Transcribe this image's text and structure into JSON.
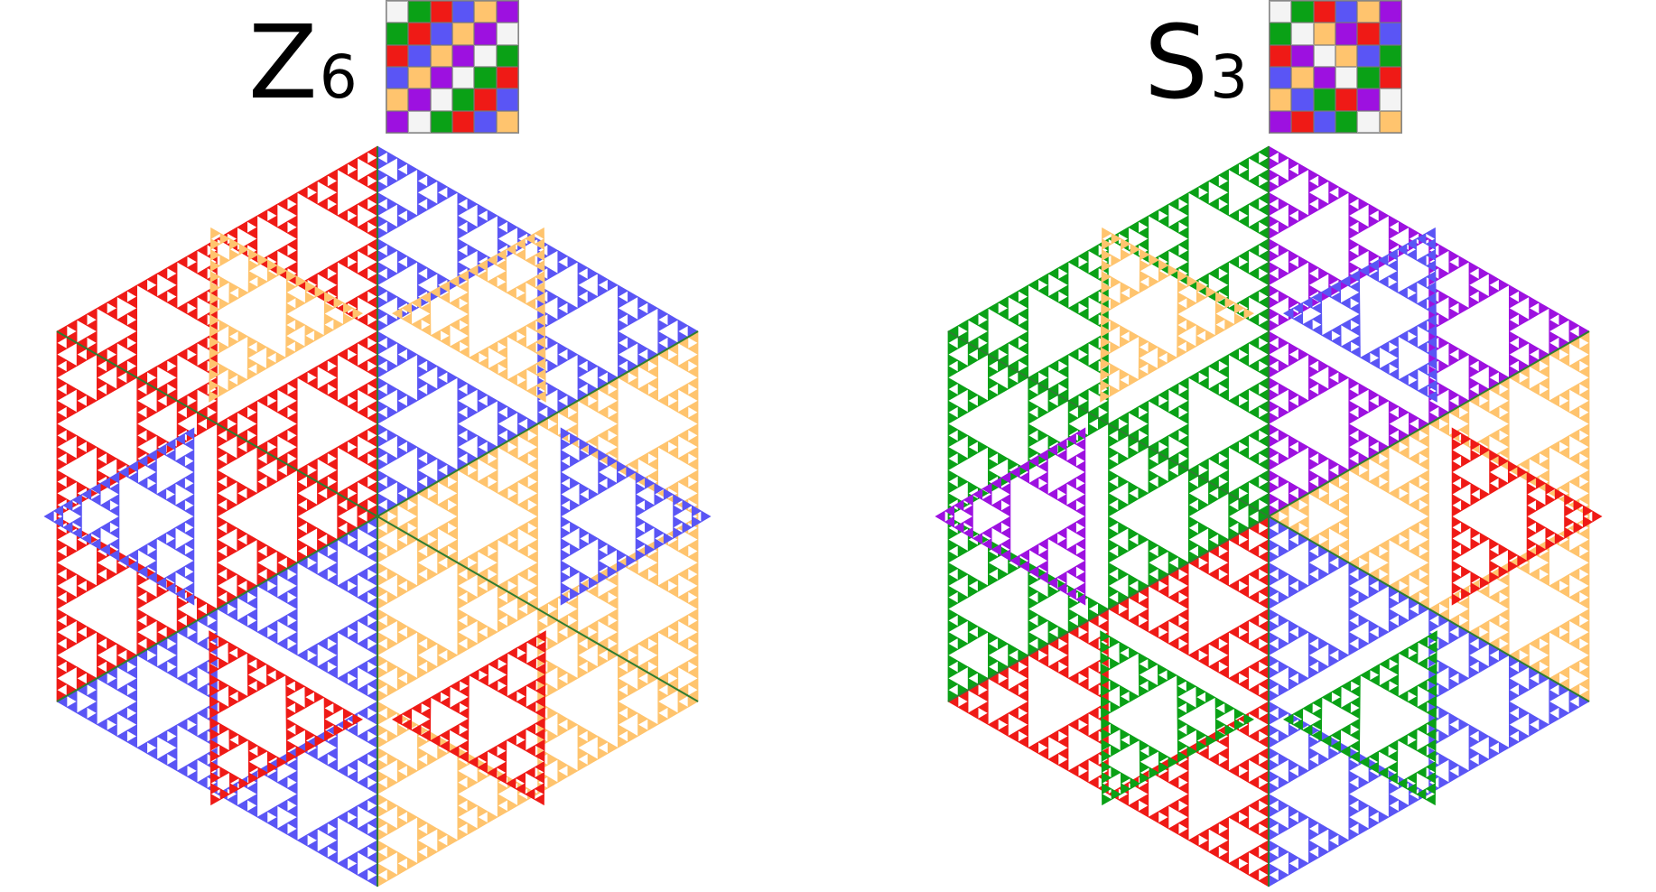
{
  "colors": {
    "e": "#f4f4f4",
    "green": "#0aa116",
    "red": "#ef1a16",
    "blue": "#5a55f5",
    "orange": "#ffc46e",
    "purple": "#9d11e0",
    "orange_dot": "#ff9900"
  },
  "panels": [
    {
      "group_symbol": "Z",
      "group_index": "6",
      "cayley_table": [
        [
          "e",
          "green",
          "red",
          "blue",
          "orange",
          "purple"
        ],
        [
          "green",
          "red",
          "blue",
          "orange",
          "purple",
          "e"
        ],
        [
          "red",
          "blue",
          "orange",
          "purple",
          "e",
          "green"
        ],
        [
          "blue",
          "orange",
          "purple",
          "e",
          "green",
          "red"
        ],
        [
          "orange",
          "purple",
          "e",
          "green",
          "red",
          "blue"
        ],
        [
          "purple",
          "e",
          "green",
          "red",
          "blue",
          "orange"
        ]
      ]
    },
    {
      "group_symbol": "S",
      "group_index": "3",
      "cayley_table": [
        [
          "e",
          "green",
          "red",
          "blue",
          "orange",
          "purple"
        ],
        [
          "green",
          "e",
          "orange",
          "purple",
          "red",
          "blue"
        ],
        [
          "red",
          "purple",
          "e",
          "orange",
          "blue",
          "green"
        ],
        [
          "blue",
          "orange",
          "purple",
          "e",
          "green",
          "red"
        ],
        [
          "orange",
          "blue",
          "green",
          "red",
          "purple",
          "e"
        ],
        [
          "purple",
          "red",
          "blue",
          "green",
          "e",
          "orange"
        ]
      ]
    }
  ]
}
